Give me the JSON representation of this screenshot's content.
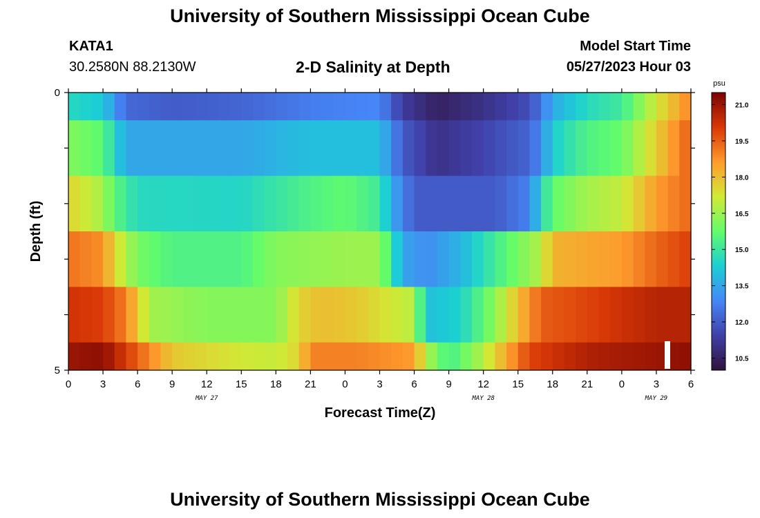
{
  "header": {
    "title": "University of Southern Mississippi Ocean Cube",
    "station_id": "KATA1",
    "station_coords": "30.2580N  88.2130W",
    "plot_title": "2-D Salinity at Depth",
    "model_start_label": "Model Start Time",
    "model_start_value": "05/27/2023 Hour 03"
  },
  "footer": {
    "title": "University of Southern Mississippi Ocean Cube"
  },
  "chart_data": {
    "type": "heatmap",
    "title": "2-D Salinity at Depth",
    "xlabel": "Forecast Time(Z)",
    "ylabel": "Depth (ft)",
    "x_ticks": [
      "0",
      "3",
      "6",
      "9",
      "12",
      "15",
      "18",
      "21",
      "0",
      "3",
      "6",
      "9",
      "12",
      "15",
      "18",
      "21",
      "0",
      "3",
      "6"
    ],
    "date_labels": [
      {
        "label": "MAY 27",
        "at_tick": 4
      },
      {
        "label": "MAY 28",
        "at_tick": 12
      },
      {
        "label": "MAY 29",
        "at_tick": 17
      }
    ],
    "y_ticks": [
      "0",
      "5"
    ],
    "ylim": [
      0,
      5
    ],
    "depth_layers_ft": [
      0.25,
      1.0,
      2.0,
      3.0,
      4.0,
      4.75
    ],
    "colorbar": {
      "unit": "psu",
      "range": [
        10.0,
        21.5
      ],
      "tick_labels": [
        "21.0",
        "19.5",
        "18.0",
        "16.5",
        "15.0",
        "13.5",
        "12.0",
        "10.5"
      ],
      "colors": [
        "#30123b",
        "#4040a8",
        "#4686f7",
        "#1bcfd4",
        "#62fc6b",
        "#d2e935",
        "#fe9b2d",
        "#d93806",
        "#7a0403"
      ]
    },
    "profiles": [
      {
        "depth_ft": 0.25,
        "points": [
          [
            0,
            14.6
          ],
          [
            3,
            14.2
          ],
          [
            4,
            13.2
          ],
          [
            5,
            12.3
          ],
          [
            9,
            12.0
          ],
          [
            15,
            12.2
          ],
          [
            21,
            12.7
          ],
          [
            27,
            12.9
          ],
          [
            29,
            11.3
          ],
          [
            32,
            10.5
          ],
          [
            36,
            11.0
          ],
          [
            40,
            11.7
          ],
          [
            41,
            12.6
          ],
          [
            42,
            13.6
          ],
          [
            45,
            14.6
          ],
          [
            48,
            15.1
          ],
          [
            51,
            17.2
          ],
          [
            54,
            19.0
          ]
        ]
      },
      {
        "depth_ft": 1.0,
        "points": [
          [
            0,
            16.2
          ],
          [
            3,
            15.6
          ],
          [
            4,
            14.5
          ],
          [
            5,
            13.5
          ],
          [
            15,
            13.5
          ],
          [
            21,
            14.0
          ],
          [
            27,
            14.0
          ],
          [
            29,
            12.0
          ],
          [
            32,
            11.0
          ],
          [
            36,
            11.5
          ],
          [
            40,
            12.2
          ],
          [
            41,
            13.0
          ],
          [
            42,
            14.3
          ],
          [
            45,
            15.4
          ],
          [
            48,
            15.8
          ],
          [
            51,
            17.7
          ],
          [
            54,
            19.6
          ]
        ]
      },
      {
        "depth_ft": 2.0,
        "points": [
          [
            0,
            17.6
          ],
          [
            3,
            16.6
          ],
          [
            4,
            15.6
          ],
          [
            6,
            14.6
          ],
          [
            15,
            14.5
          ],
          [
            21,
            15.4
          ],
          [
            24,
            15.7
          ],
          [
            27,
            15.1
          ],
          [
            28,
            13.6
          ],
          [
            30,
            12.0
          ],
          [
            37,
            12.0
          ],
          [
            40,
            12.8
          ],
          [
            41,
            14.5
          ],
          [
            42,
            15.7
          ],
          [
            45,
            16.6
          ],
          [
            48,
            17.0
          ],
          [
            51,
            18.6
          ],
          [
            54,
            19.4
          ]
        ]
      },
      {
        "depth_ft": 3.0,
        "points": [
          [
            0,
            19.2
          ],
          [
            3,
            18.8
          ],
          [
            4,
            17.5
          ],
          [
            6,
            16.0
          ],
          [
            9,
            15.4
          ],
          [
            15,
            15.4
          ],
          [
            18,
            16.2
          ],
          [
            24,
            16.5
          ],
          [
            27,
            16.5
          ],
          [
            29,
            13.5
          ],
          [
            31,
            13.0
          ],
          [
            34,
            13.8
          ],
          [
            38,
            15.6
          ],
          [
            41,
            16.8
          ],
          [
            42,
            18.2
          ],
          [
            45,
            18.4
          ],
          [
            48,
            18.6
          ],
          [
            51,
            19.4
          ],
          [
            54,
            20.0
          ]
        ]
      },
      {
        "depth_ft": 4.0,
        "points": [
          [
            0,
            20.2
          ],
          [
            3,
            20.0
          ],
          [
            5,
            19.0
          ],
          [
            7,
            16.6
          ],
          [
            12,
            16.2
          ],
          [
            18,
            16.2
          ],
          [
            20,
            17.6
          ],
          [
            22,
            18.0
          ],
          [
            25,
            17.8
          ],
          [
            30,
            16.8
          ],
          [
            31,
            14.0
          ],
          [
            34,
            14.4
          ],
          [
            37,
            16.3
          ],
          [
            39,
            18.0
          ],
          [
            41,
            19.5
          ],
          [
            45,
            19.9
          ],
          [
            51,
            20.6
          ],
          [
            54,
            20.6
          ]
        ]
      },
      {
        "depth_ft": 4.75,
        "points": [
          [
            0,
            21.0
          ],
          [
            3,
            21.2
          ],
          [
            6,
            19.5
          ],
          [
            9,
            17.8
          ],
          [
            15,
            17.2
          ],
          [
            18,
            17.0
          ],
          [
            20,
            17.6
          ],
          [
            21,
            19.0
          ],
          [
            25,
            19.0
          ],
          [
            30,
            18.6
          ],
          [
            31,
            16.8
          ],
          [
            33,
            15.2
          ],
          [
            36,
            16.8
          ],
          [
            38,
            18.4
          ],
          [
            40,
            19.9
          ],
          [
            45,
            20.7
          ],
          [
            51,
            21.0
          ],
          [
            54,
            21.2
          ]
        ]
      }
    ]
  }
}
